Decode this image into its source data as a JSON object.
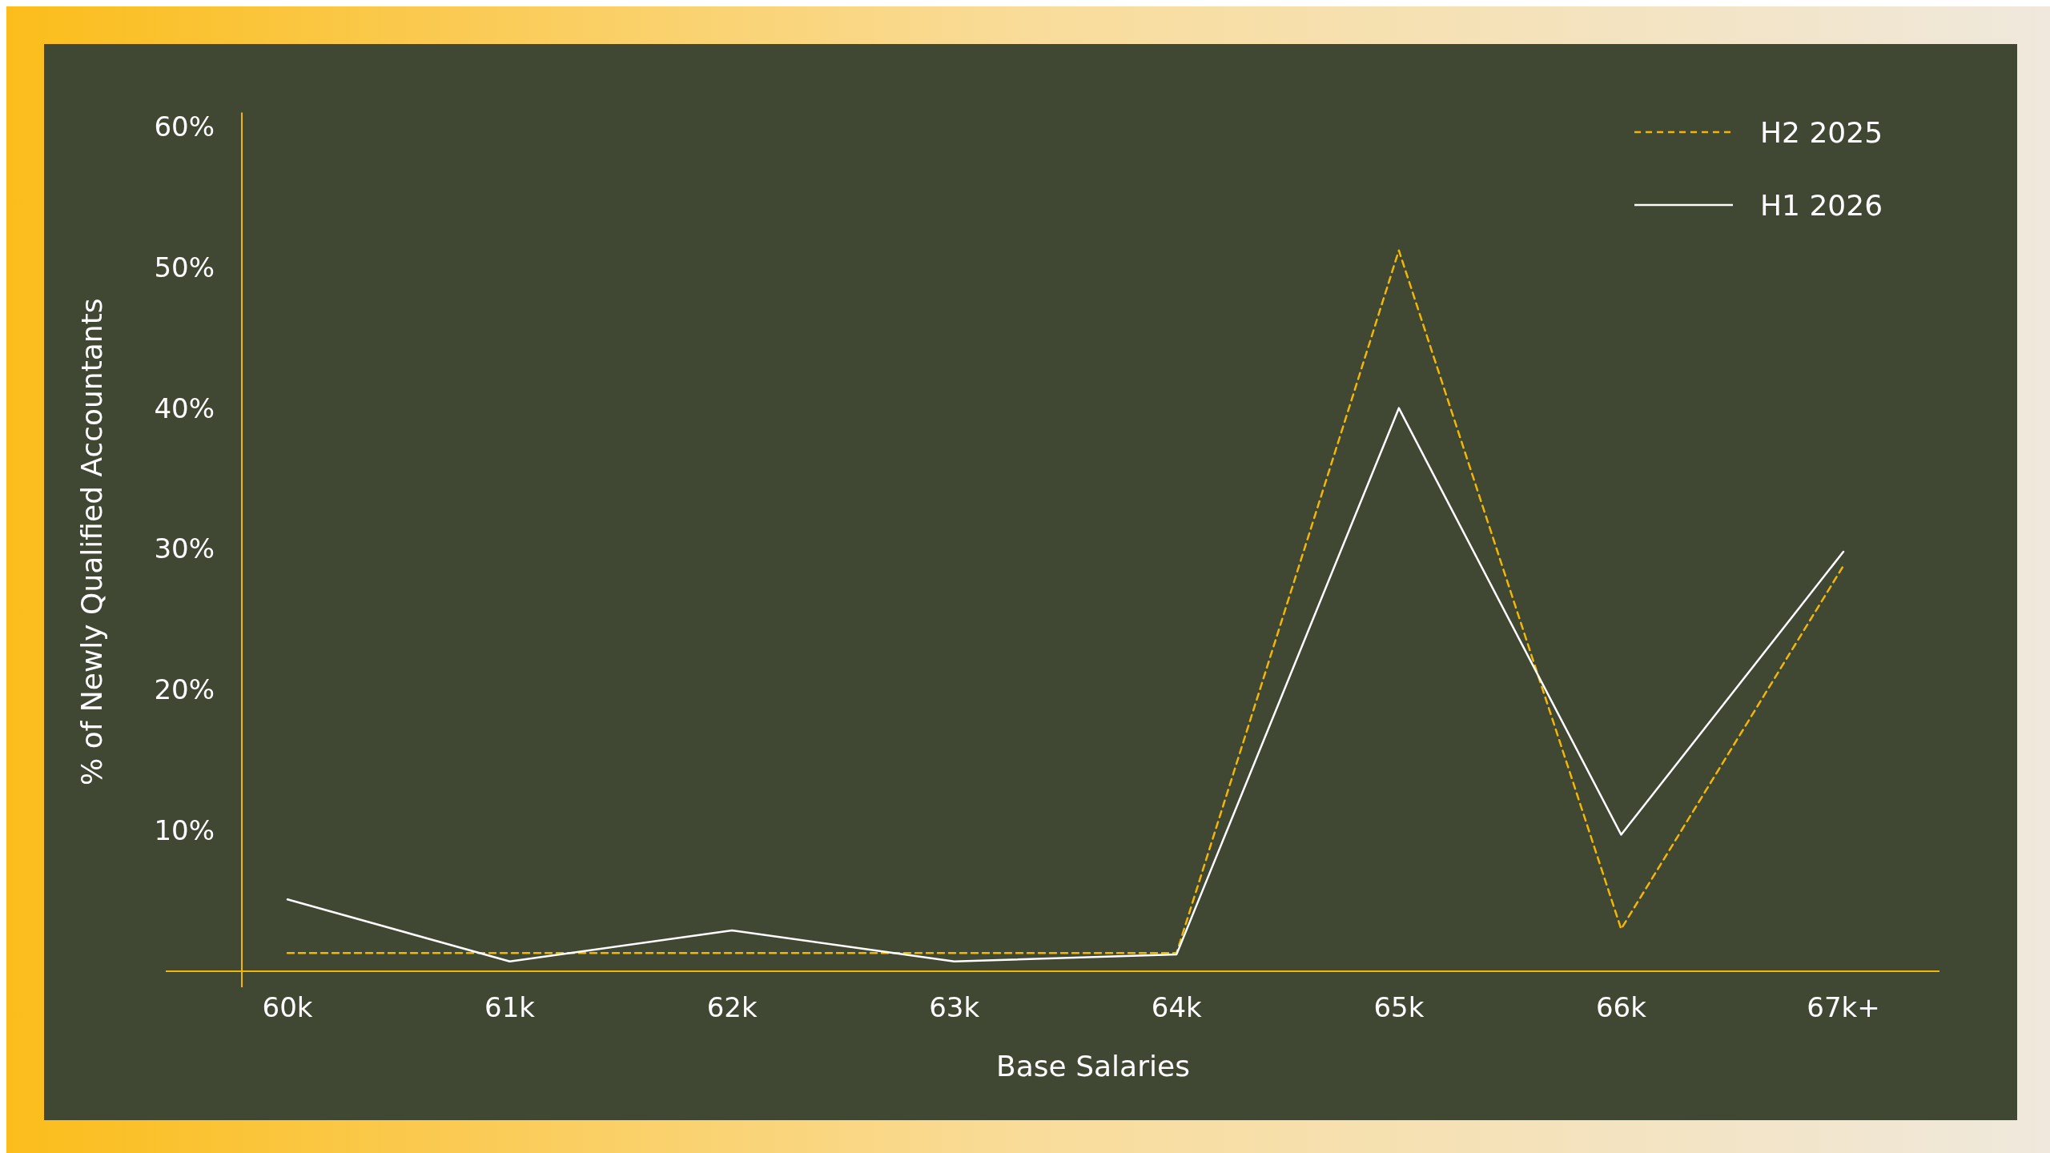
{
  "chart_data": {
    "type": "line",
    "xlabel": "Base Salaries",
    "ylabel": "% of Newly Qualified Accountants",
    "categories": [
      "60k",
      "61k",
      "62k",
      "63k",
      "64k",
      "65k",
      "66k",
      "67k+"
    ],
    "series": [
      {
        "name": "H2 2025",
        "color": "#f2b705",
        "line_style": "dashed",
        "values": [
          1.3,
          1.3,
          1.3,
          1.3,
          1.3,
          51.2,
          3,
          28.8
        ]
      },
      {
        "name": "H1 2026",
        "color": "#ffffff",
        "line_style": "solid",
        "values": [
          5.1,
          0.7,
          2.9,
          0.7,
          1.2,
          40,
          9.7,
          29.8
        ]
      }
    ],
    "ylim": [
      0,
      61
    ],
    "yticks": [
      {
        "value": 10,
        "label": "10%"
      },
      {
        "value": 20,
        "label": "20%"
      },
      {
        "value": 30,
        "label": "30%"
      },
      {
        "value": 40,
        "label": "40%"
      },
      {
        "value": 50,
        "label": "50%"
      },
      {
        "value": 60,
        "label": "60%"
      }
    ],
    "grid": false,
    "legend": "top right",
    "marker": "none"
  }
}
